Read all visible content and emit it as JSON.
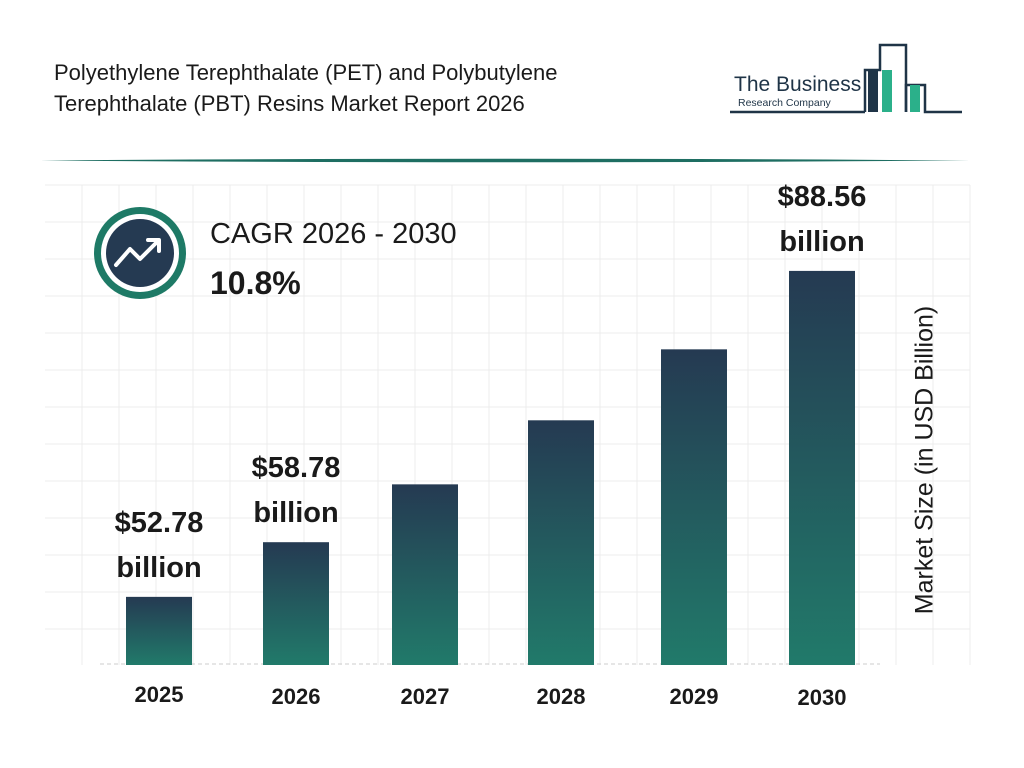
{
  "header": {
    "title_line1": "Polyethylene Terephthalate (PET) and Polybutylene",
    "title_line2": "Terephthalate (PBT) Resins Market Report 2026"
  },
  "logo": {
    "line1": "The Business",
    "line2": "Research Company"
  },
  "cagr": {
    "label": "CAGR 2026 - 2030",
    "value": "10.8%",
    "icon": "trend-up-icon"
  },
  "colors": {
    "bar_top": "#253a52",
    "bar_bottom": "#217a6a",
    "accent": "#1e7a66"
  },
  "chart_data": {
    "type": "bar",
    "categories": [
      "2025",
      "2026",
      "2027",
      "2028",
      "2029",
      "2030"
    ],
    "values": [
      52.78,
      58.78,
      65.13,
      72.16,
      79.95,
      88.56
    ],
    "data_labels": [
      {
        "line1": "$52.78",
        "line2": "billion"
      },
      {
        "line1": "$58.78",
        "line2": "billion"
      },
      null,
      null,
      null,
      {
        "line1": "$88.56",
        "line2": "billion"
      }
    ],
    "ylabel": "Market Size (in USD Billion)",
    "grid": true
  }
}
